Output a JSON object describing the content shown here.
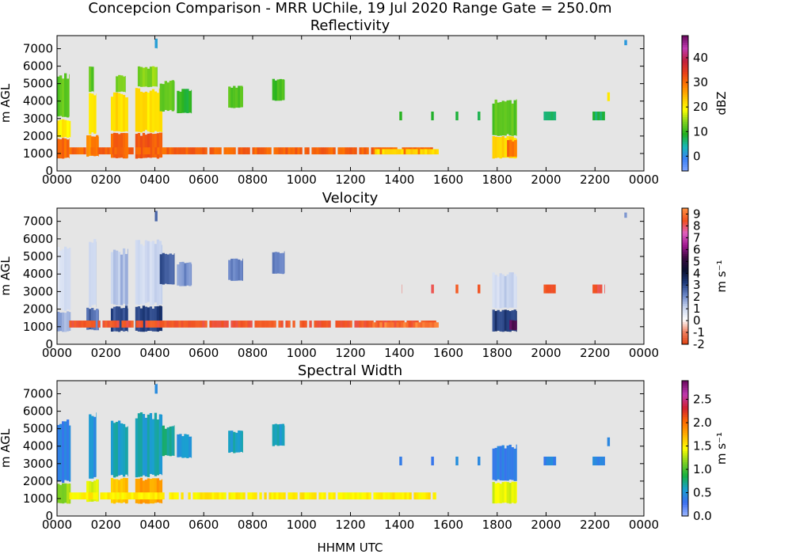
{
  "figure": {
    "title": "Concepcion Comparison - MRR UChile, 19 Jul 2020 Range Gate = 250.0m",
    "xlabel": "HHMM UTC"
  },
  "chart_data": [
    {
      "type": "heatmap",
      "title": "Reflectivity",
      "xlabel": "",
      "ylabel": "m AGL",
      "x_ticks": [
        "0000",
        "0200",
        "0400",
        "0600",
        "0800",
        "1000",
        "1200",
        "1400",
        "1600",
        "1800",
        "2000",
        "2200",
        "0000"
      ],
      "y_ticks": [
        0,
        1000,
        2000,
        3000,
        4000,
        5000,
        6000,
        7000
      ],
      "xlim_hours": [
        0,
        24
      ],
      "ylim_m": [
        0,
        7750
      ],
      "colorbar": {
        "label": "dBZ",
        "range": [
          -6,
          49
        ],
        "ticks": [
          0,
          10,
          20,
          30,
          40
        ],
        "colors": [
          "#7fa4ff",
          "#3b82f6",
          "#17b8b8",
          "#21b021",
          "#7fd21e",
          "#ffff00",
          "#ffc000",
          "#ff7a00",
          "#e8401a",
          "#c02040",
          "#c03ab0",
          "#6a0a5e"
        ]
      },
      "background": "#e5e5e5",
      "echoes": [
        {
          "t0": 0.0,
          "t1": 0.5,
          "z0": 700,
          "z1": 1900,
          "v": 30
        },
        {
          "t0": 0.0,
          "t1": 0.55,
          "z0": 1900,
          "z1": 3000,
          "v": 20
        },
        {
          "t0": 0.0,
          "t1": 0.5,
          "z0": 3000,
          "z1": 5600,
          "v": 12
        },
        {
          "t0": 1.2,
          "t1": 1.7,
          "z0": 800,
          "z1": 2100,
          "v": 28
        },
        {
          "t0": 1.3,
          "t1": 1.6,
          "z0": 2100,
          "z1": 4500,
          "v": 20
        },
        {
          "t0": 1.3,
          "t1": 1.5,
          "z0": 4500,
          "z1": 6000,
          "v": 12
        },
        {
          "t0": 2.2,
          "t1": 2.9,
          "z0": 700,
          "z1": 2200,
          "v": 31
        },
        {
          "t0": 2.2,
          "t1": 2.9,
          "z0": 2200,
          "z1": 4500,
          "v": 22
        },
        {
          "t0": 2.4,
          "t1": 2.8,
          "z0": 4500,
          "z1": 5500,
          "v": 13
        },
        {
          "t0": 3.2,
          "t1": 4.3,
          "z0": 700,
          "z1": 2200,
          "v": 32
        },
        {
          "t0": 3.2,
          "t1": 4.3,
          "z0": 2200,
          "z1": 4800,
          "v": 21
        },
        {
          "t0": 3.3,
          "t1": 4.1,
          "z0": 4800,
          "z1": 6000,
          "v": 14
        },
        {
          "t0": 4.0,
          "t1": 4.1,
          "z0": 7000,
          "z1": 7600,
          "v": 2
        },
        {
          "t0": 4.2,
          "t1": 4.8,
          "z0": 3400,
          "z1": 5200,
          "v": 12
        },
        {
          "t0": 4.9,
          "t1": 5.5,
          "z0": 3300,
          "z1": 4700,
          "v": 9
        },
        {
          "t0": 7.0,
          "t1": 7.6,
          "z0": 3600,
          "z1": 4900,
          "v": 11
        },
        {
          "t0": 8.8,
          "t1": 9.3,
          "z0": 4000,
          "z1": 5300,
          "v": 11
        },
        {
          "t0": 0.5,
          "t1": 15.5,
          "z0": 950,
          "z1": 1350,
          "v": 31
        },
        {
          "t0": 12.9,
          "t1": 15.6,
          "z0": 950,
          "z1": 1250,
          "v": 22
        },
        {
          "t0": 14.0,
          "t1": 14.1,
          "z0": 2900,
          "z1": 3400,
          "v": 9
        },
        {
          "t0": 15.3,
          "t1": 15.4,
          "z0": 2900,
          "z1": 3400,
          "v": 9
        },
        {
          "t0": 16.3,
          "t1": 16.4,
          "z0": 2900,
          "z1": 3400,
          "v": 9
        },
        {
          "t0": 17.2,
          "t1": 17.3,
          "z0": 2900,
          "z1": 3400,
          "v": 9
        },
        {
          "t0": 17.8,
          "t1": 18.8,
          "z0": 700,
          "z1": 2000,
          "v": 22
        },
        {
          "t0": 18.4,
          "t1": 18.8,
          "z0": 800,
          "z1": 1800,
          "v": 30
        },
        {
          "t0": 17.8,
          "t1": 18.8,
          "z0": 2000,
          "z1": 4100,
          "v": 12
        },
        {
          "t0": 19.9,
          "t1": 20.4,
          "z0": 2900,
          "z1": 3400,
          "v": 7
        },
        {
          "t0": 21.9,
          "t1": 22.4,
          "z0": 2900,
          "z1": 3400,
          "v": 7
        },
        {
          "t0": 22.5,
          "t1": 22.6,
          "z0": 4000,
          "z1": 4500,
          "v": 20
        },
        {
          "t0": 23.2,
          "t1": 23.3,
          "z0": 7200,
          "z1": 7500,
          "v": 1
        }
      ]
    },
    {
      "type": "heatmap",
      "title": "Velocity",
      "xlabel": "",
      "ylabel": "m AGL",
      "x_ticks": [
        "0000",
        "0200",
        "0400",
        "0600",
        "0800",
        "1000",
        "1200",
        "1400",
        "1600",
        "1800",
        "2000",
        "2200",
        "0000"
      ],
      "y_ticks": [
        0,
        1000,
        2000,
        3000,
        4000,
        5000,
        6000,
        7000
      ],
      "xlim_hours": [
        0,
        24
      ],
      "ylim_m": [
        0,
        7750
      ],
      "colorbar": {
        "label": "m s⁻¹",
        "range": [
          -2,
          9.5
        ],
        "ticks": [
          -2,
          -1,
          0,
          1,
          2,
          3,
          4,
          5,
          6,
          7,
          8,
          9
        ],
        "tick_labels": [
          "-2",
          "-1",
          "0",
          "1",
          "2",
          "3",
          "4",
          "5",
          "6",
          "7",
          "8",
          "9"
        ],
        "colors": [
          "#e04010",
          "#f08060",
          "#ffffff",
          "#c8d4ee",
          "#6a86c8",
          "#1e3a7a",
          "#0a1030",
          "#3a0a40",
          "#a01890",
          "#e060c0",
          "#f05020",
          "#ff9040"
        ]
      },
      "background": "#e5e5e5",
      "echoes": [
        {
          "t0": 0.0,
          "t1": 0.55,
          "z0": 700,
          "z1": 1900,
          "v": 1.6
        },
        {
          "t0": 0.0,
          "t1": 0.55,
          "z0": 1900,
          "z1": 5600,
          "v": 0.8
        },
        {
          "t0": 1.2,
          "t1": 1.7,
          "z0": 800,
          "z1": 2100,
          "v": 2.5
        },
        {
          "t0": 1.3,
          "t1": 1.6,
          "z0": 2100,
          "z1": 6000,
          "v": 1.0
        },
        {
          "t0": 2.2,
          "t1": 2.9,
          "z0": 700,
          "z1": 2200,
          "v": 3.0
        },
        {
          "t0": 2.2,
          "t1": 2.9,
          "z0": 2200,
          "z1": 5500,
          "v": 1.4
        },
        {
          "t0": 3.2,
          "t1": 4.3,
          "z0": 700,
          "z1": 2200,
          "v": 3.2
        },
        {
          "t0": 3.2,
          "t1": 4.3,
          "z0": 2200,
          "z1": 6000,
          "v": 1.0
        },
        {
          "t0": 4.0,
          "t1": 4.1,
          "z0": 7000,
          "z1": 7600,
          "v": 2.5
        },
        {
          "t0": 4.2,
          "t1": 4.8,
          "z0": 3400,
          "z1": 5200,
          "v": 2.8
        },
        {
          "t0": 4.9,
          "t1": 5.5,
          "z0": 3300,
          "z1": 4700,
          "v": 2.0
        },
        {
          "t0": 7.0,
          "t1": 7.6,
          "z0": 3600,
          "z1": 4900,
          "v": 2.2
        },
        {
          "t0": 8.8,
          "t1": 9.3,
          "z0": 4000,
          "z1": 5300,
          "v": 2.4
        },
        {
          "t0": 0.5,
          "t1": 15.5,
          "z0": 950,
          "z1": 1350,
          "v": 8.5
        },
        {
          "t0": 12.9,
          "t1": 15.6,
          "z0": 950,
          "z1": 1250,
          "v": 9.2
        },
        {
          "t0": 14.0,
          "t1": 14.1,
          "z0": 2900,
          "z1": 3400,
          "v": 8.4
        },
        {
          "t0": 15.3,
          "t1": 15.4,
          "z0": 2900,
          "z1": 3400,
          "v": 8.4
        },
        {
          "t0": 16.3,
          "t1": 16.4,
          "z0": 2900,
          "z1": 3400,
          "v": 8.4
        },
        {
          "t0": 17.2,
          "t1": 17.3,
          "z0": 2900,
          "z1": 3400,
          "v": 8.4
        },
        {
          "t0": 17.8,
          "t1": 18.8,
          "z0": 700,
          "z1": 2000,
          "v": 3.2
        },
        {
          "t0": 17.8,
          "t1": 18.8,
          "z0": 2000,
          "z1": 4100,
          "v": 1.0
        },
        {
          "t0": 18.5,
          "t1": 18.8,
          "z0": 800,
          "z1": 1400,
          "v": 5.8
        },
        {
          "t0": 19.9,
          "t1": 20.4,
          "z0": 2900,
          "z1": 3400,
          "v": 8.4
        },
        {
          "t0": 21.9,
          "t1": 22.4,
          "z0": 2900,
          "z1": 3400,
          "v": 8.4
        },
        {
          "t0": 23.2,
          "t1": 23.3,
          "z0": 7200,
          "z1": 7500,
          "v": 2.0
        }
      ]
    },
    {
      "type": "heatmap",
      "title": "Spectral Width",
      "xlabel": "HHMM UTC",
      "ylabel": "m AGL",
      "x_ticks": [
        "0000",
        "0200",
        "0400",
        "0600",
        "0800",
        "1000",
        "1200",
        "1400",
        "1600",
        "1800",
        "2000",
        "2200",
        "0000"
      ],
      "y_ticks": [
        0,
        1000,
        2000,
        3000,
        4000,
        5000,
        6000,
        7000
      ],
      "xlim_hours": [
        0,
        24
      ],
      "ylim_m": [
        0,
        7750
      ],
      "colorbar": {
        "label": "m s⁻¹",
        "range": [
          0,
          2.9
        ],
        "ticks": [
          0.0,
          0.5,
          1.0,
          1.5,
          2.0,
          2.5
        ],
        "tick_labels": [
          "0.0",
          "0.5",
          "1.0",
          "1.5",
          "2.0",
          "2.5"
        ],
        "colors": [
          "#9fb8ff",
          "#3b6ff0",
          "#1aa0d0",
          "#17b040",
          "#80d020",
          "#ffff00",
          "#ffb000",
          "#ff6a00",
          "#d02030",
          "#c03ab0",
          "#6a0a5e"
        ]
      },
      "background": "#e5e5e5",
      "echoes": [
        {
          "t0": 0.0,
          "t1": 0.55,
          "z0": 700,
          "z1": 1900,
          "v": 1.2
        },
        {
          "t0": 0.0,
          "t1": 0.55,
          "z0": 1900,
          "z1": 5600,
          "v": 0.4
        },
        {
          "t0": 1.2,
          "t1": 1.7,
          "z0": 800,
          "z1": 2100,
          "v": 1.4
        },
        {
          "t0": 1.3,
          "t1": 1.6,
          "z0": 2100,
          "z1": 6000,
          "v": 0.5
        },
        {
          "t0": 2.2,
          "t1": 2.9,
          "z0": 700,
          "z1": 2200,
          "v": 1.7
        },
        {
          "t0": 2.2,
          "t1": 2.9,
          "z0": 2200,
          "z1": 5500,
          "v": 0.6
        },
        {
          "t0": 3.2,
          "t1": 4.3,
          "z0": 700,
          "z1": 2200,
          "v": 1.8
        },
        {
          "t0": 3.2,
          "t1": 4.3,
          "z0": 2200,
          "z1": 6000,
          "v": 0.6
        },
        {
          "t0": 4.0,
          "t1": 4.1,
          "z0": 7000,
          "z1": 7600,
          "v": 0.4
        },
        {
          "t0": 4.2,
          "t1": 4.8,
          "z0": 3400,
          "z1": 5200,
          "v": 0.7
        },
        {
          "t0": 4.9,
          "t1": 5.5,
          "z0": 3300,
          "z1": 4700,
          "v": 0.5
        },
        {
          "t0": 7.0,
          "t1": 7.6,
          "z0": 3600,
          "z1": 4900,
          "v": 0.6
        },
        {
          "t0": 8.8,
          "t1": 9.3,
          "z0": 4000,
          "z1": 5300,
          "v": 0.6
        },
        {
          "t0": 0.5,
          "t1": 15.5,
          "z0": 950,
          "z1": 1350,
          "v": 1.5
        },
        {
          "t0": 14.0,
          "t1": 14.1,
          "z0": 2900,
          "z1": 3400,
          "v": 0.4
        },
        {
          "t0": 15.3,
          "t1": 15.4,
          "z0": 2900,
          "z1": 3400,
          "v": 0.4
        },
        {
          "t0": 16.3,
          "t1": 16.4,
          "z0": 2900,
          "z1": 3400,
          "v": 0.4
        },
        {
          "t0": 17.2,
          "t1": 17.3,
          "z0": 2900,
          "z1": 3400,
          "v": 0.4
        },
        {
          "t0": 17.8,
          "t1": 18.8,
          "z0": 700,
          "z1": 2000,
          "v": 1.4
        },
        {
          "t0": 17.8,
          "t1": 18.8,
          "z0": 2000,
          "z1": 4100,
          "v": 0.4
        },
        {
          "t0": 19.9,
          "t1": 20.4,
          "z0": 2900,
          "z1": 3400,
          "v": 0.4
        },
        {
          "t0": 21.9,
          "t1": 22.4,
          "z0": 2900,
          "z1": 3400,
          "v": 0.4
        },
        {
          "t0": 22.5,
          "t1": 22.6,
          "z0": 4000,
          "z1": 4500,
          "v": 0.4
        }
      ]
    }
  ]
}
